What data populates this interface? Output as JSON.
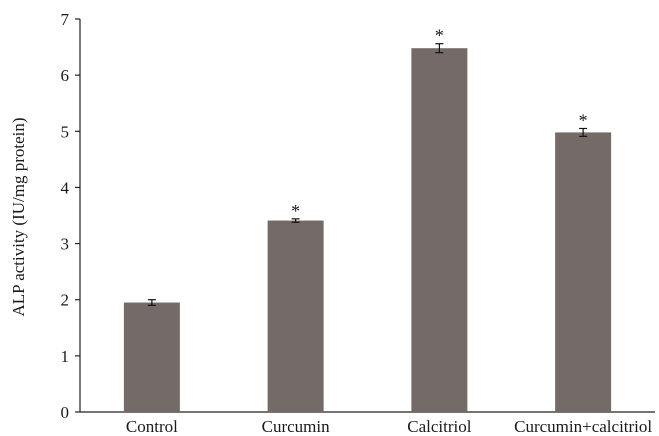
{
  "chart_data": {
    "type": "bar",
    "categories": [
      "Control",
      "Curcumin",
      "Calcitriol",
      "Curcumin+calcitriol"
    ],
    "values": [
      1.95,
      3.41,
      6.48,
      4.98
    ],
    "errors": [
      0.05,
      0.03,
      0.08,
      0.07
    ],
    "significance": [
      "",
      "*",
      "*",
      "*"
    ],
    "ylabel": "ALP activity (IU/mg protein)",
    "xlabel": "",
    "ylim": [
      0,
      7
    ],
    "yticks": [
      0,
      1,
      2,
      3,
      4,
      5,
      6,
      7
    ],
    "grid": false,
    "bar_color": "#746b69",
    "axis_color": "#222222"
  }
}
